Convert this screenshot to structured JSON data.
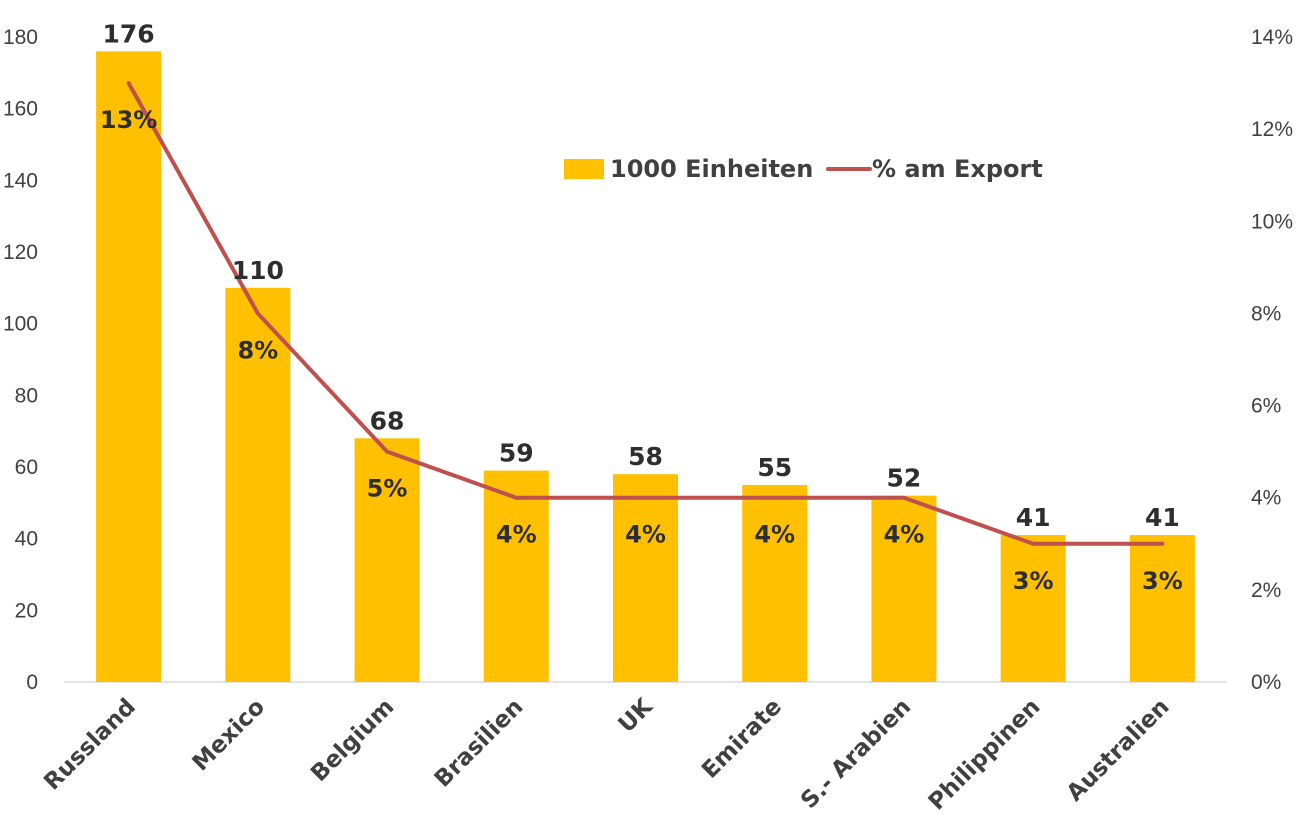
{
  "chart_data": {
    "type": "bar",
    "categories": [
      "Russland",
      "Mexico",
      "Belgium",
      "Brasilien",
      "UK",
      "Emirate",
      "S.- Arabien",
      "Philippinen",
      "Australien"
    ],
    "series": [
      {
        "name": "1000 Einheiten",
        "type": "bar",
        "axis": "left",
        "values": [
          176,
          110,
          68,
          59,
          58,
          55,
          52,
          41,
          41
        ],
        "labels": [
          "176",
          "110",
          "68",
          "59",
          "58",
          "55",
          "52",
          "41",
          "41"
        ],
        "color": "#FFC000"
      },
      {
        "name": "% am Export",
        "type": "line",
        "axis": "right",
        "values": [
          13,
          8,
          5,
          4,
          4,
          4,
          4,
          3,
          3
        ],
        "labels": [
          "13%",
          "8%",
          "5%",
          "4%",
          "4%",
          "4%",
          "4%",
          "3%",
          "3%"
        ],
        "color": "#C0504D"
      }
    ],
    "y_left": {
      "ylim": [
        0,
        180
      ],
      "ticks": [
        "0",
        "20",
        "40",
        "60",
        "80",
        "100",
        "120",
        "140",
        "160",
        "180"
      ]
    },
    "y_right": {
      "ylim": [
        0,
        14
      ],
      "ticks": [
        "0%",
        "2%",
        "4%",
        "6%",
        "8%",
        "10%",
        "12%",
        "14%"
      ]
    },
    "legend_position": "top-right",
    "grid": false
  }
}
